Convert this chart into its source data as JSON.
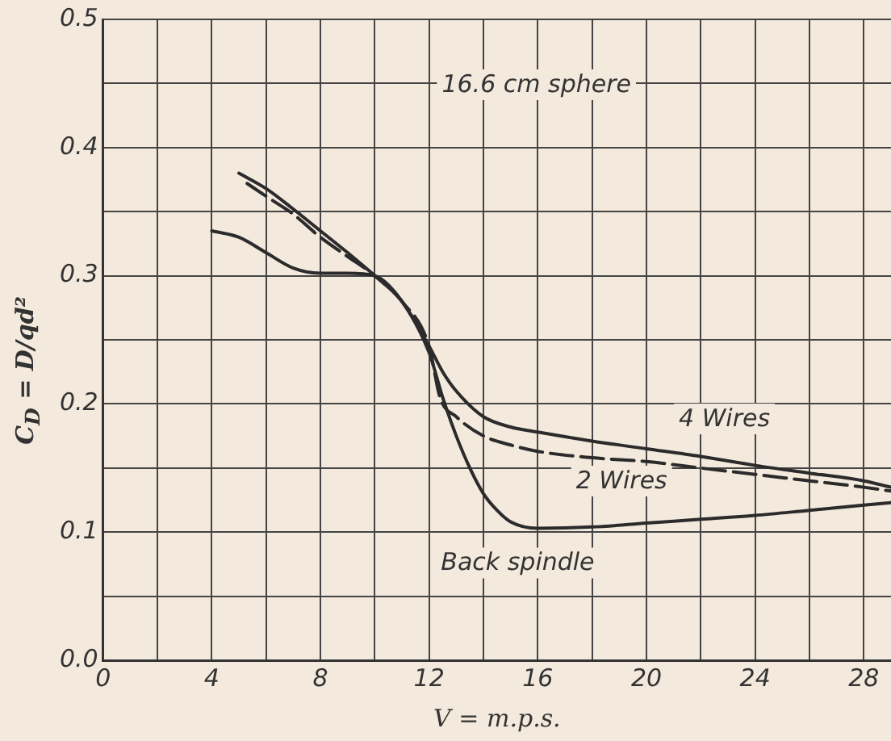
{
  "chart_data": {
    "type": "line",
    "xlabel": "V = m.p.s.",
    "ylabel": "C$_{D}$ = D/qd²",
    "annotations": [
      "16.6 cm sphere"
    ],
    "xlim": [
      0,
      29
    ],
    "ylim": [
      0,
      0.5
    ],
    "xticks": [
      0,
      {
        "value": 2,
        "label": null
      },
      4,
      {
        "value": 6,
        "label": null
      },
      8,
      {
        "value": 10,
        "label": null
      },
      12,
      {
        "value": 14,
        "label": null
      },
      16,
      {
        "value": 18,
        "label": null
      },
      20,
      {
        "value": 22,
        "label": null
      },
      24,
      {
        "value": 26,
        "label": null
      },
      28
    ],
    "yticks": [
      {
        "value": 0,
        "label": "0.0"
      },
      {
        "value": 0.05,
        "label": null
      },
      0.1,
      {
        "value": 0.15,
        "label": null
      },
      0.2,
      {
        "value": 0.25,
        "label": null
      },
      0.3,
      {
        "value": 0.35,
        "label": null
      },
      0.4,
      {
        "value": 0.45,
        "label": null
      },
      0.5
    ],
    "grid": true,
    "legend": false,
    "marker": "none",
    "series": [
      {
        "name": "4 Wires",
        "color": "#2b2b2b",
        "line_style": "solid",
        "x": [
          5,
          6,
          7,
          8,
          9,
          10,
          11,
          12,
          12.5,
          13,
          14,
          15,
          16,
          18,
          20,
          22,
          24,
          26,
          28,
          29
        ],
        "values": [
          0.38,
          0.368,
          0.352,
          0.335,
          0.318,
          0.3,
          0.28,
          0.245,
          0.225,
          0.21,
          0.19,
          0.182,
          0.178,
          0.171,
          0.165,
          0.159,
          0.152,
          0.146,
          0.14,
          0.135
        ]
      },
      {
        "name": "2 Wires",
        "color": "#2b2b2b",
        "line_style": "dashed",
        "x": [
          5.3,
          6,
          7,
          8,
          9,
          10,
          11,
          12,
          12.4,
          13,
          14,
          15,
          16,
          18,
          20,
          22,
          24,
          26,
          28,
          29
        ],
        "values": [
          0.372,
          0.362,
          0.348,
          0.33,
          0.315,
          0.3,
          0.28,
          0.245,
          0.205,
          0.19,
          0.175,
          0.168,
          0.163,
          0.158,
          0.155,
          0.15,
          0.145,
          0.14,
          0.135,
          0.132
        ]
      },
      {
        "name": "Back spindle",
        "color": "#2b2b2b",
        "line_style": "solid",
        "x": [
          4,
          5,
          6,
          7,
          8,
          9,
          10,
          11,
          12,
          12.5,
          13,
          13.5,
          14,
          14.5,
          15,
          16,
          18,
          20,
          22,
          24,
          26,
          28,
          29
        ],
        "values": [
          0.335,
          0.33,
          0.318,
          0.306,
          0.302,
          0.302,
          0.3,
          0.28,
          0.24,
          0.205,
          0.175,
          0.15,
          0.13,
          0.117,
          0.108,
          0.103,
          0.104,
          0.107,
          0.11,
          0.113,
          0.117,
          0.121,
          0.123
        ]
      }
    ]
  }
}
